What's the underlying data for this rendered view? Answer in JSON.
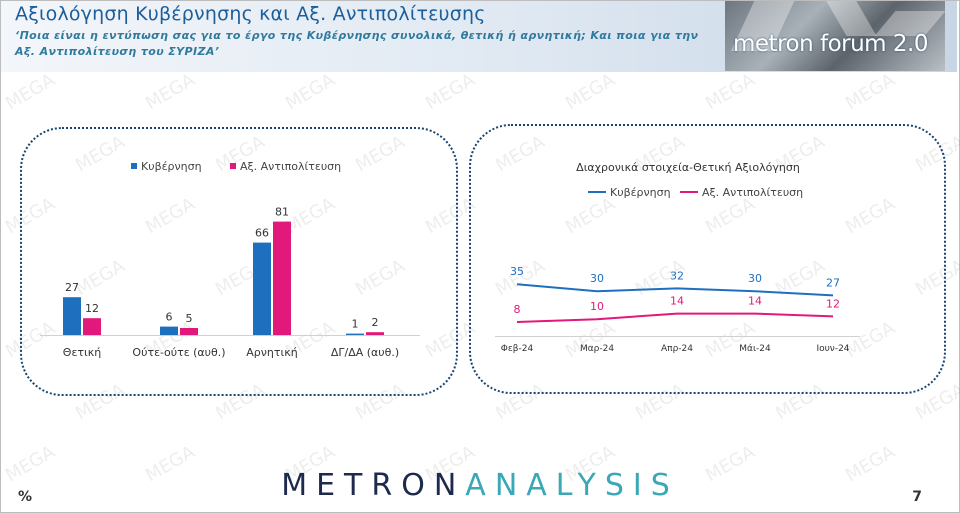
{
  "header": {
    "title": "Αξιολόγηση Κυβέρνησης και Αξ. Αντιπολίτευσης",
    "subtitle": "‘Ποια είναι η εντύπωση σας για το έργο της Κυβέρνησης συνολικά, θετική ή αρνητική; Και ποια για την Αξ. Αντιπολίτευση του ΣΥΡΙΖΑ’",
    "logo_text": "metron forum 2.0"
  },
  "footer": {
    "brand_part1": "METRON",
    "brand_part2": "ANALYSIS",
    "unit": "%",
    "page_number": "7"
  },
  "watermark": "MEGA",
  "colors": {
    "government": "#1f6fbf",
    "opposition": "#e0197a",
    "title": "#1b5e9c"
  },
  "chart_data": [
    {
      "type": "bar",
      "title": "",
      "categories": [
        "Θετική",
        "Ούτε-ούτε (αυθ.)",
        "Αρνητική",
        "ΔΓ/ΔΑ (αυθ.)"
      ],
      "series": [
        {
          "name": "Κυβέρνηση",
          "values": [
            27,
            6,
            66,
            1
          ]
        },
        {
          "name": "Αξ. Αντιπολίτευση",
          "values": [
            12,
            5,
            81,
            2
          ]
        }
      ],
      "xlabel": "",
      "ylabel": "",
      "ylim": [
        0,
        100
      ],
      "grid": false,
      "legend": "top"
    },
    {
      "type": "line",
      "title": "Διαχρονικά στοιχεία-Θετική Αξιολόγηση",
      "x": [
        "Φεβ-24",
        "Μαρ-24",
        "Απρ-24",
        "Μάι-24",
        "Ιουν-24"
      ],
      "series": [
        {
          "name": "Κυβέρνηση",
          "values": [
            35,
            30,
            32,
            30,
            27
          ]
        },
        {
          "name": "Αξ. Αντιπολίτευση",
          "values": [
            8,
            10,
            14,
            14,
            12
          ]
        }
      ],
      "xlabel": "",
      "ylabel": "",
      "ylim": [
        0,
        50
      ],
      "grid": false,
      "legend": "top"
    }
  ]
}
